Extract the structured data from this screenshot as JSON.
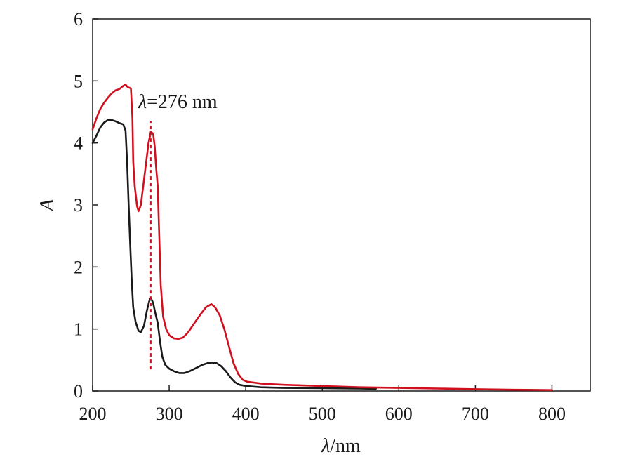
{
  "chart_data": {
    "type": "line",
    "title": "",
    "xlabel": {
      "var": "λ",
      "unit": "/nm"
    },
    "ylabel": "A",
    "xlim": [
      200,
      850
    ],
    "ylim": [
      0,
      6
    ],
    "x_ticks": [
      200,
      300,
      400,
      500,
      600,
      700,
      800
    ],
    "y_ticks": [
      0,
      1,
      2,
      3,
      4,
      5,
      6
    ],
    "grid": false,
    "legend": "none",
    "annotation": {
      "var": "λ",
      "text": "=276 nm",
      "x": 276,
      "y_from": 0.35,
      "y_to": 4.35,
      "color": "#d0101e"
    },
    "series": [
      {
        "color": "#1a1a1a",
        "points": [
          [
            200,
            4.0
          ],
          [
            205,
            4.12
          ],
          [
            210,
            4.25
          ],
          [
            215,
            4.33
          ],
          [
            220,
            4.37
          ],
          [
            225,
            4.37
          ],
          [
            230,
            4.35
          ],
          [
            235,
            4.32
          ],
          [
            240,
            4.3
          ],
          [
            243,
            4.2
          ],
          [
            245,
            3.7
          ],
          [
            247,
            3.0
          ],
          [
            249,
            2.4
          ],
          [
            251,
            1.8
          ],
          [
            253,
            1.35
          ],
          [
            256,
            1.12
          ],
          [
            260,
            0.97
          ],
          [
            263,
            0.95
          ],
          [
            267,
            1.05
          ],
          [
            271,
            1.3
          ],
          [
            274,
            1.45
          ],
          [
            276,
            1.5
          ],
          [
            279,
            1.42
          ],
          [
            282,
            1.25
          ],
          [
            285,
            1.1
          ],
          [
            288,
            0.8
          ],
          [
            291,
            0.55
          ],
          [
            295,
            0.42
          ],
          [
            300,
            0.36
          ],
          [
            306,
            0.32
          ],
          [
            313,
            0.29
          ],
          [
            320,
            0.29
          ],
          [
            327,
            0.32
          ],
          [
            335,
            0.37
          ],
          [
            343,
            0.42
          ],
          [
            350,
            0.45
          ],
          [
            356,
            0.46
          ],
          [
            362,
            0.45
          ],
          [
            368,
            0.4
          ],
          [
            374,
            0.32
          ],
          [
            380,
            0.22
          ],
          [
            386,
            0.14
          ],
          [
            392,
            0.1
          ],
          [
            400,
            0.08
          ],
          [
            420,
            0.06
          ],
          [
            450,
            0.05
          ],
          [
            500,
            0.045
          ],
          [
            550,
            0.04
          ],
          [
            570,
            0.035
          ]
        ]
      },
      {
        "color": "#d0101e",
        "points": [
          [
            200,
            4.22
          ],
          [
            205,
            4.4
          ],
          [
            210,
            4.55
          ],
          [
            215,
            4.65
          ],
          [
            220,
            4.73
          ],
          [
            225,
            4.8
          ],
          [
            230,
            4.85
          ],
          [
            235,
            4.87
          ],
          [
            240,
            4.92
          ],
          [
            243,
            4.94
          ],
          [
            246,
            4.9
          ],
          [
            250,
            4.88
          ],
          [
            252,
            4.4
          ],
          [
            253,
            3.7
          ],
          [
            255,
            3.3
          ],
          [
            258,
            2.98
          ],
          [
            260,
            2.9
          ],
          [
            263,
            3.0
          ],
          [
            266,
            3.3
          ],
          [
            270,
            3.7
          ],
          [
            273,
            4.0
          ],
          [
            276,
            4.18
          ],
          [
            279,
            4.15
          ],
          [
            281,
            3.95
          ],
          [
            283,
            3.6
          ],
          [
            285,
            3.3
          ],
          [
            287,
            2.5
          ],
          [
            289,
            1.7
          ],
          [
            292,
            1.2
          ],
          [
            296,
            1.0
          ],
          [
            300,
            0.9
          ],
          [
            306,
            0.85
          ],
          [
            312,
            0.84
          ],
          [
            318,
            0.86
          ],
          [
            325,
            0.95
          ],
          [
            332,
            1.08
          ],
          [
            340,
            1.22
          ],
          [
            348,
            1.35
          ],
          [
            355,
            1.4
          ],
          [
            360,
            1.35
          ],
          [
            366,
            1.22
          ],
          [
            372,
            1.0
          ],
          [
            378,
            0.72
          ],
          [
            384,
            0.45
          ],
          [
            390,
            0.28
          ],
          [
            396,
            0.18
          ],
          [
            402,
            0.15
          ],
          [
            420,
            0.12
          ],
          [
            450,
            0.1
          ],
          [
            500,
            0.08
          ],
          [
            550,
            0.06
          ],
          [
            600,
            0.05
          ],
          [
            650,
            0.04
          ],
          [
            700,
            0.03
          ],
          [
            750,
            0.02
          ],
          [
            800,
            0.015
          ]
        ]
      }
    ]
  },
  "colors": {
    "axis": "#1a1a1a",
    "accent": "#d0101e",
    "background": "#ffffff"
  }
}
